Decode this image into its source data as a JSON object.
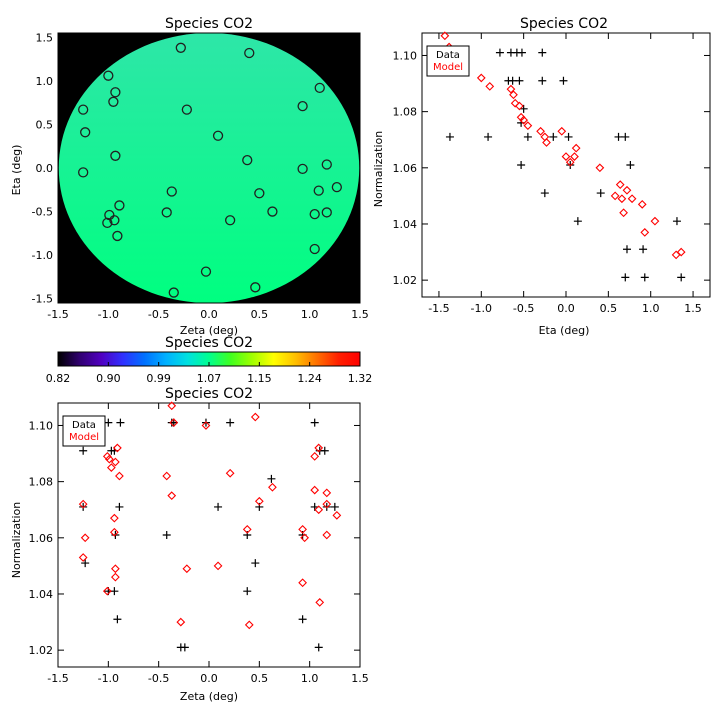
{
  "chart_data": [
    {
      "type": "scatter",
      "title": "Species CO2",
      "xlabel": "Zeta (deg)",
      "ylabel": "Eta (deg)",
      "xlim": [
        -1.5,
        1.5
      ],
      "ylim": [
        -1.55,
        1.55
      ],
      "xticks": [
        "-1.5",
        "-1.0",
        "-0.5",
        "0.0",
        "0.5",
        "1.0",
        "1.5"
      ],
      "yticks": [
        "-1.5",
        "-1.0",
        "-0.5",
        "0.0",
        "0.5",
        "1.0",
        "1.5"
      ],
      "background": "#000000",
      "disk_gradient": [
        "#2ee6a8",
        "#00ff80"
      ],
      "marker_color": "#202020",
      "points": [
        [
          -0.28,
          1.38
        ],
        [
          0.4,
          1.32
        ],
        [
          -1.0,
          1.06
        ],
        [
          -0.93,
          0.87
        ],
        [
          -0.95,
          0.76
        ],
        [
          -0.22,
          0.67
        ],
        [
          1.1,
          0.92
        ],
        [
          0.93,
          0.71
        ],
        [
          -1.25,
          0.67
        ],
        [
          -1.23,
          0.41
        ],
        [
          0.09,
          0.37
        ],
        [
          -0.93,
          0.14
        ],
        [
          0.38,
          0.09
        ],
        [
          -1.25,
          -0.05
        ],
        [
          0.93,
          -0.01
        ],
        [
          1.17,
          0.04
        ],
        [
          1.27,
          -0.22
        ],
        [
          1.09,
          -0.26
        ],
        [
          -0.37,
          -0.27
        ],
        [
          0.5,
          -0.29
        ],
        [
          -0.89,
          -0.43
        ],
        [
          -0.42,
          -0.51
        ],
        [
          0.63,
          -0.5
        ],
        [
          1.05,
          -0.53
        ],
        [
          1.17,
          -0.51
        ],
        [
          -0.99,
          -0.54
        ],
        [
          -0.94,
          -0.6
        ],
        [
          -1.01,
          -0.63
        ],
        [
          0.21,
          -0.6
        ],
        [
          -0.91,
          -0.78
        ],
        [
          1.05,
          -0.93
        ],
        [
          -0.03,
          -1.19
        ],
        [
          0.46,
          -1.37
        ],
        [
          -0.35,
          -1.43
        ]
      ]
    },
    {
      "type": "scatter",
      "title": "Species CO2",
      "xlabel": "Eta (deg)",
      "ylabel": "Normalization",
      "xlim": [
        -1.7,
        1.7
      ],
      "ylim": [
        1.014,
        1.108
      ],
      "xticks": [
        "-1.5",
        "-1.0",
        "-0.5",
        "0.0",
        "0.5",
        "1.0",
        "1.5"
      ],
      "yticks": [
        "1.02",
        "1.04",
        "1.06",
        "1.08",
        "1.10"
      ],
      "legend": {
        "position": "top-left",
        "items": [
          {
            "label": "Data",
            "color": "#000000"
          },
          {
            "label": "Model",
            "color": "#ff0000"
          }
        ]
      },
      "series": [
        {
          "name": "Data",
          "marker": "plus",
          "color": "#000000",
          "points": [
            [
              -1.37,
              1.071
            ],
            [
              -0.78,
              1.101
            ],
            [
              -0.65,
              1.101
            ],
            [
              -0.58,
              1.101
            ],
            [
              -0.52,
              1.101
            ],
            [
              -0.28,
              1.101
            ],
            [
              -0.68,
              1.091
            ],
            [
              -0.63,
              1.091
            ],
            [
              -0.55,
              1.091
            ],
            [
              -0.28,
              1.091
            ],
            [
              -0.03,
              1.091
            ],
            [
              -0.92,
              1.071
            ],
            [
              -0.5,
              1.081
            ],
            [
              -0.53,
              1.076
            ],
            [
              -0.45,
              1.071
            ],
            [
              -0.15,
              1.071
            ],
            [
              0.03,
              1.071
            ],
            [
              0.62,
              1.071
            ],
            [
              0.7,
              1.071
            ],
            [
              -0.53,
              1.061
            ],
            [
              0.05,
              1.061
            ],
            [
              0.76,
              1.061
            ],
            [
              -0.25,
              1.051
            ],
            [
              0.41,
              1.051
            ],
            [
              0.14,
              1.041
            ],
            [
              1.31,
              1.041
            ],
            [
              0.72,
              1.031
            ],
            [
              0.91,
              1.031
            ],
            [
              0.7,
              1.021
            ],
            [
              0.93,
              1.021
            ],
            [
              1.36,
              1.021
            ]
          ]
        },
        {
          "name": "Model",
          "marker": "diamond",
          "color": "#ff0000",
          "points": [
            [
              -1.43,
              1.107
            ],
            [
              -1.38,
              1.103
            ],
            [
              -1.25,
              1.099
            ],
            [
              -1.0,
              1.092
            ],
            [
              -0.9,
              1.089
            ],
            [
              -0.65,
              1.088
            ],
            [
              -0.62,
              1.086
            ],
            [
              -0.6,
              1.083
            ],
            [
              -0.55,
              1.082
            ],
            [
              -0.53,
              1.078
            ],
            [
              -0.5,
              1.077
            ],
            [
              -0.45,
              1.075
            ],
            [
              -0.3,
              1.073
            ],
            [
              -0.25,
              1.071
            ],
            [
              -0.23,
              1.069
            ],
            [
              -0.05,
              1.073
            ],
            [
              0.0,
              1.064
            ],
            [
              0.05,
              1.062
            ],
            [
              0.12,
              1.067
            ],
            [
              0.1,
              1.064
            ],
            [
              0.4,
              1.06
            ],
            [
              0.58,
              1.05
            ],
            [
              0.64,
              1.054
            ],
            [
              0.66,
              1.049
            ],
            [
              0.72,
              1.052
            ],
            [
              0.68,
              1.044
            ],
            [
              0.78,
              1.049
            ],
            [
              0.9,
              1.047
            ],
            [
              0.93,
              1.037
            ],
            [
              1.05,
              1.041
            ],
            [
              1.3,
              1.029
            ],
            [
              1.36,
              1.03
            ]
          ]
        }
      ]
    },
    {
      "type": "colorbar",
      "title": "Species CO2",
      "ticks": [
        "0.82",
        "0.90",
        "0.99",
        "1.07",
        "1.15",
        "1.24",
        "1.32"
      ],
      "colors": [
        "#000000",
        "#300070",
        "#5000c0",
        "#3030ff",
        "#0070ff",
        "#00b0ff",
        "#00e0e0",
        "#00ff90",
        "#40ff20",
        "#a0ff00",
        "#ffff00",
        "#ffc000",
        "#ff7000",
        "#ff2000",
        "#ff0000"
      ]
    },
    {
      "type": "scatter",
      "title": "Species CO2",
      "xlabel": "Zeta (deg)",
      "ylabel": "Normalization",
      "xlim": [
        -1.5,
        1.5
      ],
      "ylim": [
        1.014,
        1.108
      ],
      "xticks": [
        "-1.5",
        "-1.0",
        "-0.5",
        "0.0",
        "0.5",
        "1.0",
        "1.5"
      ],
      "yticks": [
        "1.02",
        "1.04",
        "1.06",
        "1.08",
        "1.10"
      ],
      "legend": {
        "position": "top-left",
        "items": [
          {
            "label": "Data",
            "color": "#000000"
          },
          {
            "label": "Model",
            "color": "#ff0000"
          }
        ]
      },
      "series": [
        {
          "name": "Data",
          "marker": "plus",
          "color": "#000000",
          "points": [
            [
              -1.0,
              1.101
            ],
            [
              -0.88,
              1.101
            ],
            [
              -0.37,
              1.101
            ],
            [
              -0.35,
              1.101
            ],
            [
              -0.03,
              1.101
            ],
            [
              0.21,
              1.101
            ],
            [
              1.05,
              1.101
            ],
            [
              -1.25,
              1.091
            ],
            [
              -0.97,
              1.091
            ],
            [
              -0.94,
              1.091
            ],
            [
              1.1,
              1.091
            ],
            [
              1.15,
              1.091
            ],
            [
              0.62,
              1.081
            ],
            [
              -1.25,
              1.071
            ],
            [
              -0.89,
              1.071
            ],
            [
              0.09,
              1.071
            ],
            [
              0.5,
              1.071
            ],
            [
              1.05,
              1.071
            ],
            [
              1.17,
              1.071
            ],
            [
              1.25,
              1.071
            ],
            [
              -0.93,
              1.061
            ],
            [
              -0.42,
              1.061
            ],
            [
              0.38,
              1.061
            ],
            [
              0.93,
              1.061
            ],
            [
              -1.23,
              1.051
            ],
            [
              0.46,
              1.051
            ],
            [
              -1.0,
              1.041
            ],
            [
              -0.94,
              1.041
            ],
            [
              0.38,
              1.041
            ],
            [
              -0.91,
              1.031
            ],
            [
              0.93,
              1.031
            ],
            [
              -0.28,
              1.021
            ],
            [
              -0.24,
              1.021
            ],
            [
              1.09,
              1.021
            ]
          ]
        },
        {
          "name": "Model",
          "marker": "diamond",
          "color": "#ff0000",
          "points": [
            [
              -0.37,
              1.107
            ],
            [
              -0.35,
              1.101
            ],
            [
              -0.03,
              1.1
            ],
            [
              0.46,
              1.103
            ],
            [
              -0.91,
              1.092
            ],
            [
              -0.99,
              1.088
            ],
            [
              -0.97,
              1.085
            ],
            [
              -0.93,
              1.087
            ],
            [
              -0.89,
              1.082
            ],
            [
              -1.01,
              1.089
            ],
            [
              -0.42,
              1.082
            ],
            [
              0.21,
              1.083
            ],
            [
              1.05,
              1.089
            ],
            [
              1.09,
              1.092
            ],
            [
              -0.37,
              1.075
            ],
            [
              0.63,
              1.078
            ],
            [
              1.05,
              1.077
            ],
            [
              1.17,
              1.076
            ],
            [
              -1.25,
              1.072
            ],
            [
              0.5,
              1.073
            ],
            [
              1.09,
              1.07
            ],
            [
              1.17,
              1.072
            ],
            [
              1.27,
              1.068
            ],
            [
              -0.94,
              1.067
            ],
            [
              0.38,
              1.063
            ],
            [
              0.93,
              1.063
            ],
            [
              -1.23,
              1.06
            ],
            [
              -0.94,
              1.062
            ],
            [
              0.95,
              1.06
            ],
            [
              1.17,
              1.061
            ],
            [
              -1.25,
              1.053
            ],
            [
              0.09,
              1.05
            ],
            [
              -0.22,
              1.049
            ],
            [
              -0.93,
              1.049
            ],
            [
              -0.93,
              1.046
            ],
            [
              0.93,
              1.044
            ],
            [
              -1.01,
              1.041
            ],
            [
              1.1,
              1.037
            ],
            [
              -0.28,
              1.03
            ],
            [
              0.4,
              1.029
            ]
          ]
        }
      ]
    }
  ]
}
